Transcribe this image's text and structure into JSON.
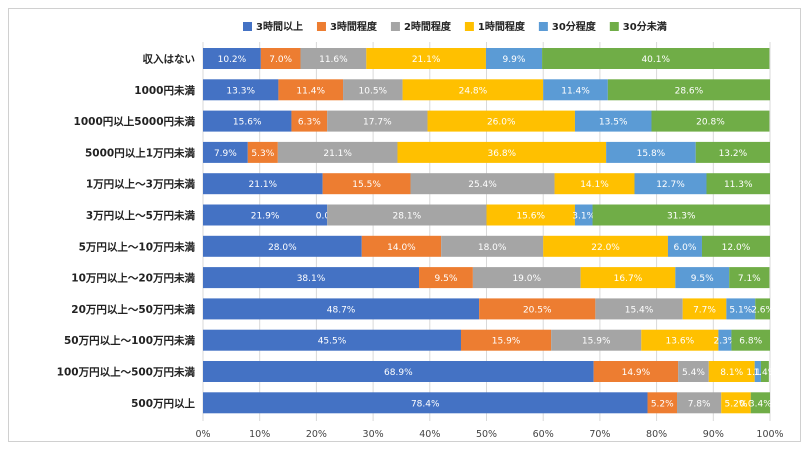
{
  "chart_data": {
    "type": "bar",
    "orientation": "horizontal",
    "stacked": true,
    "title": "",
    "xlabel": "",
    "ylabel": "",
    "xlim": [
      0,
      100
    ],
    "ticks": [
      "0%",
      "10%",
      "20%",
      "30%",
      "40%",
      "50%",
      "60%",
      "70%",
      "80%",
      "90%",
      "100%"
    ],
    "grid": true,
    "legend_position": "top",
    "categories": [
      "収入はない",
      "1000円未満",
      "1000円以上5000円未満",
      "5000円以上1万円未満",
      "1万円以上～3万円未満",
      "3万円以上～5万円未満",
      "5万円以上～10万円未満",
      "10万円以上～20万円未満",
      "20万円以上～50万円未満",
      "50万円以上～100万円未満",
      "100万円以上～500万円未満",
      "500万円以上"
    ],
    "series": [
      {
        "name": "3時間以上",
        "color": "#4472c4",
        "values": [
          10.2,
          13.3,
          15.6,
          7.9,
          21.1,
          21.9,
          28.0,
          38.1,
          48.7,
          45.5,
          68.9,
          78.4
        ],
        "labels": [
          "10.2%",
          "13.3%",
          "15.6%",
          "7.9%",
          "21.1%",
          "21.9%",
          "28.0%",
          "38.1%",
          "48.7%",
          "45.5%",
          "68.9%",
          "78.4%"
        ]
      },
      {
        "name": "3時間程度",
        "color": "#ed7d31",
        "values": [
          7.0,
          11.4,
          6.3,
          5.3,
          15.5,
          0.0,
          14.0,
          9.5,
          20.5,
          15.9,
          14.9,
          5.2
        ],
        "labels": [
          "7.0%",
          "11.4%",
          "6.3%",
          "5.3%",
          "15.5%",
          "0.0%",
          "14.0%",
          "9.5%",
          "20.5%",
          "15.9%",
          "14.9%",
          "5.2%"
        ]
      },
      {
        "name": "2時間程度",
        "color": "#a5a5a5",
        "values": [
          11.6,
          10.5,
          17.7,
          21.1,
          25.4,
          28.1,
          18.0,
          19.0,
          15.4,
          15.9,
          5.4,
          7.8
        ],
        "labels": [
          "11.6%",
          "10.5%",
          "17.7%",
          "21.1%",
          "25.4%",
          "28.1%",
          "18.0%",
          "19.0%",
          "15.4%",
          "15.9%",
          "5.4%",
          "7.8%"
        ]
      },
      {
        "name": "1時間程度",
        "color": "#ffc000",
        "values": [
          21.1,
          24.8,
          26.0,
          36.8,
          14.1,
          15.6,
          22.0,
          16.7,
          7.7,
          13.6,
          8.1,
          5.2
        ],
        "labels": [
          "21.1%",
          "24.8%",
          "26.0%",
          "36.8%",
          "14.1%",
          "15.6%",
          "22.0%",
          "16.7%",
          "7.7%",
          "13.6%",
          "8.1%",
          "5.2%"
        ]
      },
      {
        "name": "30分程度",
        "color": "#5b9bd5",
        "values": [
          9.9,
          11.4,
          13.5,
          15.8,
          12.7,
          3.1,
          6.0,
          9.5,
          5.1,
          2.3,
          1.1,
          0.0
        ],
        "labels": [
          "9.9%",
          "11.4%",
          "13.5%",
          "15.8%",
          "12.7%",
          "3.1%",
          "6.0%",
          "9.5%",
          "5.1%",
          "2.3%",
          "1.1%",
          "0.0%"
        ]
      },
      {
        "name": "30分未満",
        "color": "#70ad47",
        "values": [
          40.1,
          28.6,
          20.8,
          13.2,
          11.3,
          31.3,
          12.0,
          7.1,
          2.6,
          6.8,
          1.4,
          3.4
        ],
        "labels": [
          "40.1%",
          "28.6%",
          "20.8%",
          "13.2%",
          "11.3%",
          "31.3%",
          "12.0%",
          "7.1%",
          "2.6%",
          "6.8%",
          "1.4%",
          "3.4%"
        ]
      }
    ]
  }
}
